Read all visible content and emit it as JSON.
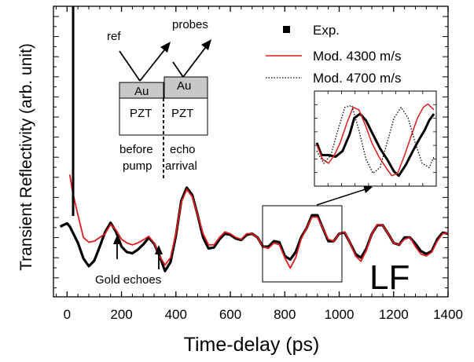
{
  "chart_data": {
    "type": "line",
    "title": "",
    "xlabel": "Time-delay (ps)",
    "ylabel": "Transient Reflectivity (arb. unit)",
    "xlim": [
      -50,
      1400
    ],
    "x_ticks": [
      0,
      200,
      400,
      600,
      800,
      1000,
      1200,
      1400
    ],
    "y_tick_labels": "none",
    "legend_position": "top-right",
    "legend": [
      {
        "label": "Exp.",
        "marker": "square",
        "color": "#000000"
      },
      {
        "label": "Mod. 4300 m/s",
        "style": "solid",
        "color": "#e31a1c"
      },
      {
        "label": "Mod. 4700 m/s",
        "style": "dotted",
        "color": "#000000"
      }
    ],
    "series": [
      {
        "name": "Exp.",
        "color": "#000000",
        "x": [
          -25,
          -15,
          0,
          10,
          20,
          40,
          60,
          80,
          100,
          120,
          140,
          160,
          180,
          200,
          220,
          240,
          260,
          280,
          300,
          320,
          340,
          360,
          380,
          400,
          420,
          440,
          460,
          480,
          500,
          520,
          540,
          560,
          580,
          600,
          620,
          640,
          660,
          680,
          700,
          720,
          740,
          760,
          780,
          800,
          820,
          840,
          860,
          880,
          900,
          920,
          940,
          960,
          980,
          1000,
          1020,
          1040,
          1060,
          1080,
          1100,
          1120,
          1140,
          1160,
          1180,
          1200,
          1220,
          1240,
          1260,
          1280,
          1300,
          1320,
          1340,
          1360,
          1380,
          1400
        ],
        "y": [
          0.24,
          0.28,
          0.33,
          0.25,
          0.1,
          -0.2,
          -0.62,
          -0.83,
          -0.68,
          -0.3,
          0.1,
          0.35,
          0.1,
          -0.3,
          -0.45,
          -0.48,
          -0.38,
          -0.24,
          -0.06,
          -0.22,
          -0.55,
          -0.96,
          -0.72,
          0.0,
          0.95,
          1.3,
          1.1,
          0.55,
          -0.05,
          -0.35,
          -0.32,
          -0.1,
          0.05,
          0.02,
          -0.08,
          -0.12,
          0.02,
          0.05,
          -0.05,
          -0.3,
          -0.3,
          -0.15,
          -0.18,
          -0.55,
          -0.65,
          -0.45,
          -0.05,
          0.2,
          0.55,
          0.55,
          0.2,
          -0.15,
          -0.15,
          0.05,
          0.08,
          -0.2,
          -0.5,
          -0.6,
          -0.35,
          0.05,
          0.28,
          0.28,
          0.05,
          -0.2,
          -0.25,
          -0.05,
          -0.05,
          -0.22,
          -0.42,
          -0.5,
          -0.42,
          -0.1,
          0.08,
          0.05
        ]
      },
      {
        "name": "Mod. 4300 m/s",
        "color": "#e31a1c",
        "x": [
          10,
          20,
          40,
          60,
          80,
          100,
          120,
          140,
          160,
          180,
          200,
          220,
          240,
          260,
          280,
          300,
          320,
          340,
          360,
          380,
          400,
          420,
          440,
          460,
          480,
          500,
          520,
          540,
          560,
          580,
          600,
          620,
          640,
          660,
          680,
          700,
          720,
          740,
          760,
          780,
          800,
          820,
          840,
          860,
          880,
          900,
          920,
          940,
          960,
          980,
          1000,
          1020,
          1040,
          1060,
          1080,
          1100,
          1120,
          1140,
          1160,
          1180,
          1200,
          1220,
          1240,
          1260,
          1280,
          1300,
          1320,
          1340,
          1360,
          1380,
          1400
        ],
        "y": [
          1.65,
          1.2,
          0.55,
          -0.05,
          -0.18,
          -0.15,
          -0.05,
          0.05,
          0.3,
          0.15,
          -0.1,
          -0.2,
          -0.25,
          -0.2,
          -0.12,
          -0.02,
          -0.2,
          -0.55,
          -0.8,
          -0.6,
          0.05,
          0.9,
          1.25,
          1.05,
          0.55,
          0.05,
          -0.25,
          -0.25,
          -0.05,
          0.1,
          0.05,
          -0.05,
          -0.1,
          0.05,
          0.05,
          -0.05,
          -0.3,
          -0.35,
          -0.2,
          -0.25,
          -0.6,
          -0.88,
          -0.6,
          -0.1,
          0.2,
          0.5,
          0.5,
          0.2,
          -0.1,
          -0.15,
          0.05,
          0.1,
          -0.2,
          -0.55,
          -0.7,
          -0.4,
          0.05,
          0.3,
          0.28,
          0.05,
          -0.2,
          -0.25,
          -0.1,
          -0.05,
          -0.3,
          -0.5,
          -0.55,
          -0.45,
          -0.15,
          0.05,
          0.08
        ]
      }
    ],
    "inset": {
      "series": [
        {
          "name": "Exp.",
          "color": "#000000",
          "points": [
            [
              0,
              0.45
            ],
            [
              0.04,
              0.3
            ],
            [
              0.1,
              0.3
            ],
            [
              0.16,
              0.28
            ],
            [
              0.22,
              0.35
            ],
            [
              0.28,
              0.55
            ],
            [
              0.32,
              0.75
            ],
            [
              0.37,
              0.8
            ],
            [
              0.42,
              0.72
            ],
            [
              0.48,
              0.55
            ],
            [
              0.54,
              0.38
            ],
            [
              0.6,
              0.25
            ],
            [
              0.66,
              0.1
            ],
            [
              0.7,
              0.05
            ],
            [
              0.76,
              0.18
            ],
            [
              0.82,
              0.35
            ],
            [
              0.87,
              0.48
            ],
            [
              0.92,
              0.6
            ],
            [
              0.96,
              0.72
            ],
            [
              1.0,
              0.8
            ]
          ]
        },
        {
          "name": "Mod. 4300 m/s",
          "color": "#e31a1c",
          "points": [
            [
              0,
              0.42
            ],
            [
              0.05,
              0.25
            ],
            [
              0.1,
              0.2
            ],
            [
              0.15,
              0.3
            ],
            [
              0.2,
              0.45
            ],
            [
              0.26,
              0.7
            ],
            [
              0.31,
              0.88
            ],
            [
              0.36,
              0.85
            ],
            [
              0.41,
              0.68
            ],
            [
              0.47,
              0.45
            ],
            [
              0.53,
              0.28
            ],
            [
              0.59,
              0.15
            ],
            [
              0.64,
              0.05
            ],
            [
              0.69,
              0.08
            ],
            [
              0.75,
              0.3
            ],
            [
              0.81,
              0.55
            ],
            [
              0.86,
              0.75
            ],
            [
              0.91,
              0.88
            ],
            [
              0.95,
              0.92
            ],
            [
              1.0,
              0.85
            ]
          ]
        },
        {
          "name": "Mod. 4700 m/s",
          "color": "#000000",
          "points": [
            [
              0,
              0.35
            ],
            [
              0.06,
              0.2
            ],
            [
              0.12,
              0.3
            ],
            [
              0.18,
              0.6
            ],
            [
              0.24,
              0.88
            ],
            [
              0.3,
              0.9
            ],
            [
              0.36,
              0.6
            ],
            [
              0.42,
              0.25
            ],
            [
              0.48,
              0.08
            ],
            [
              0.54,
              0.15
            ],
            [
              0.6,
              0.45
            ],
            [
              0.66,
              0.75
            ],
            [
              0.72,
              0.88
            ],
            [
              0.78,
              0.75
            ],
            [
              0.84,
              0.45
            ],
            [
              0.9,
              0.2
            ],
            [
              0.96,
              0.15
            ],
            [
              1.0,
              0.28
            ]
          ]
        }
      ]
    },
    "annotations": {
      "label_LF": "LF",
      "label_gold_echoes": "Gold echoes",
      "label_ref": "ref",
      "label_probes": "probes",
      "label_au_left": "Au",
      "label_au_right": "Au",
      "label_pzt_left": "PZT",
      "label_pzt_right": "PZT",
      "label_before": "before",
      "label_pump": "pump",
      "label_echo": "echo",
      "label_arrival": "arrival"
    }
  }
}
